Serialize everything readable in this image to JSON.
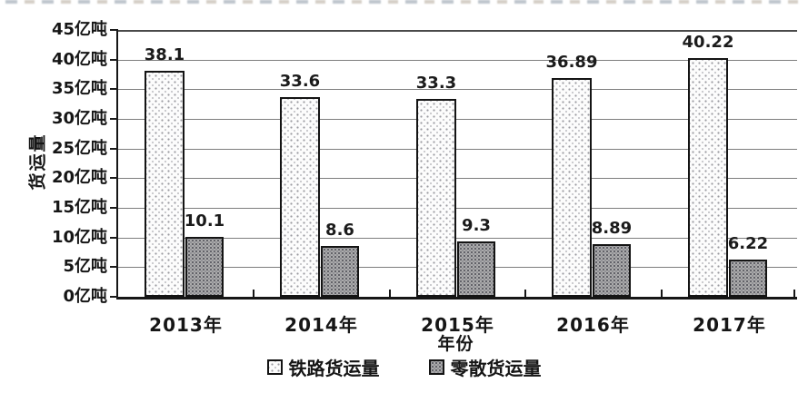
{
  "chart_data": {
    "type": "bar",
    "categories": [
      "2013年",
      "2014年",
      "2015年",
      "2016年",
      "2017年"
    ],
    "series": [
      {
        "name": "铁路货运量",
        "values": [
          38.1,
          33.6,
          33.3,
          36.89,
          40.22
        ],
        "value_labels": [
          "38.1",
          "33.6",
          "33.3",
          "36.89",
          "40.22"
        ],
        "style": "white-stipple"
      },
      {
        "name": "零散货运量",
        "values": [
          10.1,
          8.6,
          9.3,
          8.89,
          6.22
        ],
        "value_labels": [
          "10.1",
          "8.6",
          "9.3",
          "8.89",
          "6.22"
        ],
        "style": "gray-stipple"
      }
    ],
    "xlabel": "年份",
    "ylabel": "货运量",
    "ylim": [
      0,
      45
    ],
    "y_tick_step": 5,
    "y_tick_labels": [
      "0亿吨",
      "5亿吨",
      "10亿吨",
      "15亿吨",
      "20亿吨",
      "25亿吨",
      "30亿吨",
      "35亿吨",
      "40亿吨",
      "45亿吨"
    ],
    "grid": true,
    "legend_position": "bottom"
  },
  "colors": {
    "background": "#ffffff",
    "axis": "#161616",
    "gridline": "#7d7d7d",
    "bar_border": "#141414",
    "series1_fill": "#fcfcfc",
    "series2_fill": "#b0b0b0",
    "text": "#161616"
  }
}
